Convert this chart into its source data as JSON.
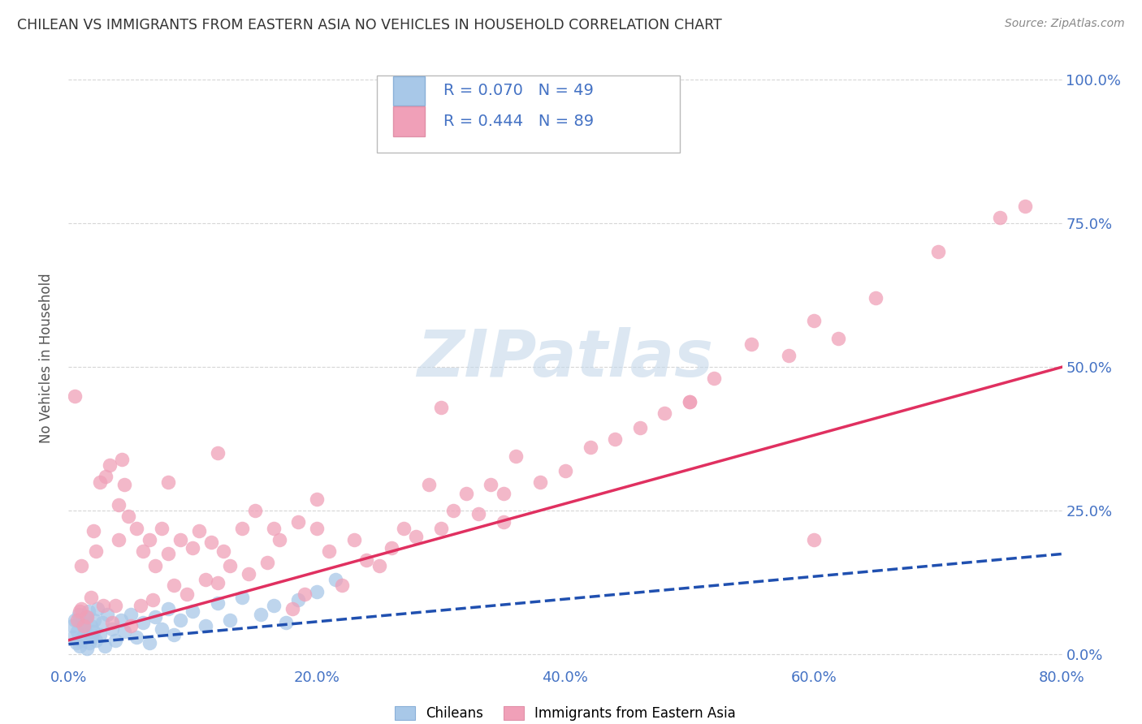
{
  "title": "CHILEAN VS IMMIGRANTS FROM EASTERN ASIA NO VEHICLES IN HOUSEHOLD CORRELATION CHART",
  "source": "Source: ZipAtlas.com",
  "xlabel_ticks": [
    "0.0%",
    "20.0%",
    "40.0%",
    "60.0%",
    "80.0%"
  ],
  "ylabel_ticks": [
    "0.0%",
    "25.0%",
    "50.0%",
    "75.0%",
    "100.0%"
  ],
  "xlim": [
    0.0,
    0.8
  ],
  "ylim": [
    -0.02,
    1.05
  ],
  "chilean_R": 0.07,
  "chilean_N": 49,
  "immigrant_R": 0.444,
  "immigrant_N": 89,
  "chilean_color": "#a8c8e8",
  "immigrant_color": "#f0a0b8",
  "chilean_line_color": "#2050b0",
  "immigrant_line_color": "#e03060",
  "watermark_text": "ZIPatlas",
  "legend_labels": [
    "Chileans",
    "Immigrants from Eastern Asia"
  ],
  "background_color": "#ffffff",
  "grid_color": "#cccccc",
  "title_color": "#333333",
  "axis_label_color": "#4472c4",
  "ylabel_label": "No Vehicles in Household",
  "chilean_line_x0": 0.0,
  "chilean_line_x1": 0.8,
  "chilean_line_y0": 0.018,
  "chilean_line_y1": 0.175,
  "immigrant_line_x0": 0.0,
  "immigrant_line_x1": 0.8,
  "immigrant_line_y0": 0.025,
  "immigrant_line_y1": 0.5,
  "chilean_x": [
    0.003,
    0.004,
    0.005,
    0.006,
    0.007,
    0.008,
    0.009,
    0.01,
    0.011,
    0.012,
    0.013,
    0.014,
    0.015,
    0.016,
    0.017,
    0.018,
    0.019,
    0.02,
    0.021,
    0.022,
    0.023,
    0.025,
    0.027,
    0.029,
    0.031,
    0.035,
    0.038,
    0.042,
    0.045,
    0.05,
    0.055,
    0.06,
    0.065,
    0.07,
    0.075,
    0.08,
    0.085,
    0.09,
    0.1,
    0.11,
    0.12,
    0.13,
    0.14,
    0.155,
    0.165,
    0.175,
    0.185,
    0.2,
    0.215
  ],
  "chilean_y": [
    0.05,
    0.03,
    0.06,
    0.02,
    0.04,
    0.07,
    0.015,
    0.025,
    0.055,
    0.035,
    0.045,
    0.065,
    0.01,
    0.075,
    0.02,
    0.05,
    0.03,
    0.04,
    0.06,
    0.025,
    0.08,
    0.035,
    0.055,
    0.015,
    0.07,
    0.045,
    0.025,
    0.06,
    0.04,
    0.07,
    0.03,
    0.055,
    0.02,
    0.065,
    0.045,
    0.08,
    0.035,
    0.06,
    0.075,
    0.05,
    0.09,
    0.06,
    0.1,
    0.07,
    0.085,
    0.055,
    0.095,
    0.11,
    0.13
  ],
  "immigrant_x": [
    0.005,
    0.007,
    0.009,
    0.01,
    0.012,
    0.015,
    0.018,
    0.02,
    0.022,
    0.025,
    0.028,
    0.03,
    0.033,
    0.035,
    0.038,
    0.04,
    0.043,
    0.045,
    0.048,
    0.05,
    0.055,
    0.058,
    0.06,
    0.065,
    0.068,
    0.07,
    0.075,
    0.08,
    0.085,
    0.09,
    0.095,
    0.1,
    0.105,
    0.11,
    0.115,
    0.12,
    0.125,
    0.13,
    0.14,
    0.145,
    0.15,
    0.16,
    0.165,
    0.17,
    0.18,
    0.185,
    0.19,
    0.2,
    0.21,
    0.22,
    0.23,
    0.24,
    0.25,
    0.26,
    0.27,
    0.28,
    0.29,
    0.3,
    0.31,
    0.32,
    0.33,
    0.34,
    0.35,
    0.36,
    0.38,
    0.4,
    0.42,
    0.44,
    0.46,
    0.48,
    0.5,
    0.52,
    0.55,
    0.58,
    0.6,
    0.62,
    0.65,
    0.7,
    0.75,
    0.77,
    0.01,
    0.04,
    0.08,
    0.12,
    0.2,
    0.3,
    0.35,
    0.5,
    0.6
  ],
  "immigrant_y": [
    0.45,
    0.06,
    0.075,
    0.08,
    0.05,
    0.065,
    0.1,
    0.215,
    0.18,
    0.3,
    0.085,
    0.31,
    0.33,
    0.055,
    0.085,
    0.26,
    0.34,
    0.295,
    0.24,
    0.05,
    0.22,
    0.085,
    0.18,
    0.2,
    0.095,
    0.155,
    0.22,
    0.3,
    0.12,
    0.2,
    0.105,
    0.185,
    0.215,
    0.13,
    0.195,
    0.125,
    0.18,
    0.155,
    0.22,
    0.14,
    0.25,
    0.16,
    0.22,
    0.2,
    0.08,
    0.23,
    0.105,
    0.22,
    0.18,
    0.12,
    0.2,
    0.165,
    0.155,
    0.185,
    0.22,
    0.205,
    0.295,
    0.22,
    0.25,
    0.28,
    0.245,
    0.295,
    0.28,
    0.345,
    0.3,
    0.32,
    0.36,
    0.375,
    0.395,
    0.42,
    0.44,
    0.48,
    0.54,
    0.52,
    0.58,
    0.55,
    0.62,
    0.7,
    0.76,
    0.78,
    0.155,
    0.2,
    0.175,
    0.35,
    0.27,
    0.43,
    0.23,
    0.44,
    0.2
  ]
}
